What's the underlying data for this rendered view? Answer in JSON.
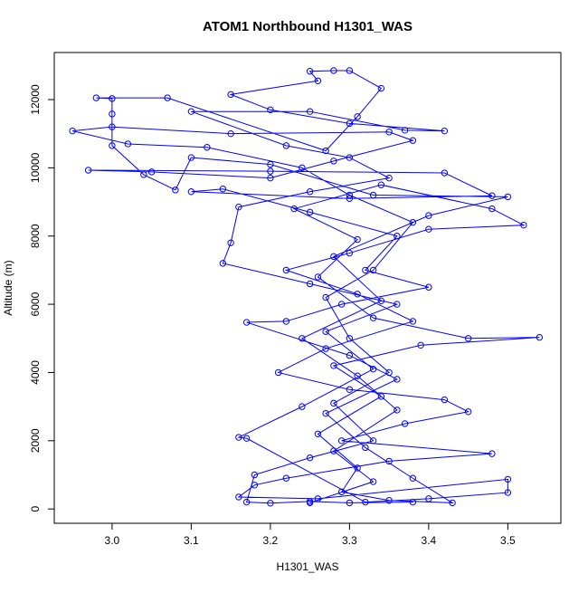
{
  "chart_data": {
    "type": "line",
    "title": "ATOM1 Northbound H1301_WAS",
    "xlabel": "H1301_WAS",
    "ylabel": "Altitude (m)",
    "color": "#0000ff",
    "markers": "circle",
    "xlim": [
      2.927,
      3.567
    ],
    "ylim": [
      -420,
      13380
    ],
    "xticks": [
      {
        "value": 3,
        "label": "3.0"
      },
      3.1,
      3.2,
      3.3,
      3.4,
      3.5
    ],
    "yticks": [
      0,
      2000,
      4000,
      6000,
      8000,
      10000,
      12000
    ],
    "x": [
      3.38,
      3.3,
      3.25,
      3.2,
      3.17,
      3.18,
      3.25,
      3.33,
      3.28,
      3.35,
      3.3,
      3.27,
      3.33,
      3.38,
      3.3,
      3.24,
      3.12,
      3.02,
      2.95,
      3.0,
      3.15,
      3.35,
      3.38,
      3.28,
      3.2,
      3.05,
      2.97,
      3.2,
      3.42,
      3.48,
      3.3,
      3.1,
      3.14,
      3.25,
      3.36,
      3.32,
      3.4,
      3.29,
      3.22,
      3.17,
      3.3,
      3.36,
      3.27,
      3.32,
      3.38,
      3.43,
      3.35,
      3.29,
      3.31,
      3.26,
      3.34,
      3.28,
      3.39,
      3.54,
      3.45,
      3.33,
      3.26,
      3.31,
      3.23,
      3.34,
      3.48,
      3.52,
      3.4,
      3.3,
      3.22,
      3.31,
      3.38,
      3.27,
      3.21,
      3.3,
      3.42,
      3.45,
      3.37,
      3.29,
      3.48,
      3.35,
      3.22,
      3.18,
      3.16,
      3.26,
      3.5,
      3.5,
      3.4,
      3.32,
      3.17,
      3.16,
      3.24,
      3.33,
      3.27,
      3.36,
      3.25,
      3.14,
      3.15,
      3.16,
      3.25,
      3.35,
      3.3,
      3.22,
      3.1,
      3.25,
      3.37,
      3.42,
      3.3,
      3.2,
      3.15,
      3.26,
      3.25,
      3.28,
      3.3,
      3.34,
      3.31,
      3.27,
      3.07,
      2.98,
      3.0,
      3.0,
      3.0,
      3.04,
      3.08,
      3.1,
      3.2,
      3.33,
      3.5,
      3.4,
      3.28,
      3.34,
      3.24,
      3.31,
      3.36,
      3.28,
      3.33,
      3.25
    ],
    "values": [
      200,
      180,
      220,
      170,
      200,
      1000,
      1500,
      2000,
      3100,
      4000,
      5000,
      6200,
      7000,
      8400,
      9200,
      10000,
      10600,
      10700,
      11080,
      11200,
      11000,
      11050,
      10800,
      10200,
      9700,
      9880,
      9930,
      9900,
      9850,
      9180,
      9100,
      9300,
      9380,
      8700,
      8000,
      7000,
      6500,
      6000,
      5500,
      5470,
      4500,
      3800,
      2800,
      1800,
      900,
      180,
      250,
      500,
      1200,
      2200,
      3300,
      4200,
      4800,
      5030,
      5000,
      5600,
      6800,
      7900,
      8800,
      9500,
      8800,
      8320,
      8200,
      7500,
      7000,
      6300,
      5500,
      4700,
      4000,
      3500,
      3200,
      2850,
      2500,
      2000,
      1620,
      1400,
      900,
      700,
      350,
      300,
      870,
      480,
      300,
      200,
      2070,
      2100,
      3000,
      4100,
      5200,
      6000,
      6600,
      7200,
      7800,
      8850,
      9300,
      9700,
      10300,
      10650,
      11650,
      11650,
      11100,
      11080,
      11300,
      11700,
      12150,
      12550,
      12830,
      12850,
      12850,
      12330,
      11500,
      10500,
      12050,
      12050,
      12030,
      11580,
      10650,
      9800,
      9350,
      10300,
      10100,
      9200,
      9150,
      8600,
      7400,
      6100,
      5000,
      3900,
      2900,
      1700,
      800,
      180
    ]
  }
}
